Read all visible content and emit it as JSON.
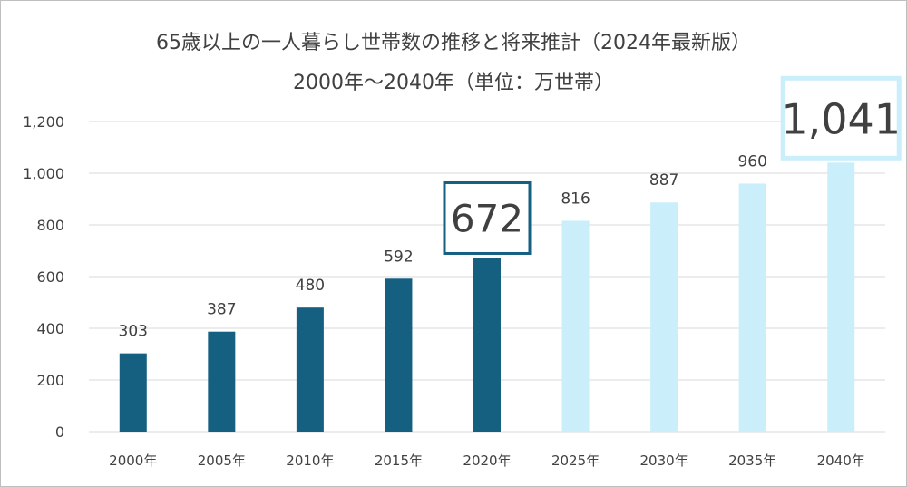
{
  "chart_data": {
    "type": "bar",
    "title": "65歳以上の一人暮らし世帯数の推移と将来推計（2024年最新版）",
    "subtitle": "2000年〜2040年（単位：万世帯）",
    "categories": [
      "2000年",
      "2005年",
      "2010年",
      "2015年",
      "2020年",
      "2025年",
      "2030年",
      "2035年",
      "2040年"
    ],
    "values": [
      303,
      387,
      480,
      592,
      672,
      816,
      887,
      960,
      1041
    ],
    "value_labels": [
      "303",
      "387",
      "480",
      "592",
      "672",
      "816",
      "887",
      "960",
      "1,041"
    ],
    "highlighted": [
      "2020年",
      "2040年"
    ],
    "series_kind": [
      "actual",
      "actual",
      "actual",
      "actual",
      "actual",
      "projection",
      "projection",
      "projection",
      "projection"
    ],
    "y_ticks": [
      0,
      200,
      400,
      600,
      800,
      1000,
      1200
    ],
    "y_tick_labels": [
      "0",
      "200",
      "400",
      "600",
      "800",
      "1,000",
      "1,200"
    ],
    "ylim": [
      0,
      1200
    ],
    "grid": true,
    "legend": "none",
    "colors": {
      "actual": "#155f80",
      "projection": "#cbeefb",
      "highlight_actual_border": "#155f80",
      "highlight_projection_border": "#cbeefb",
      "grid": "#d9d9d9",
      "text": "#404040"
    }
  }
}
